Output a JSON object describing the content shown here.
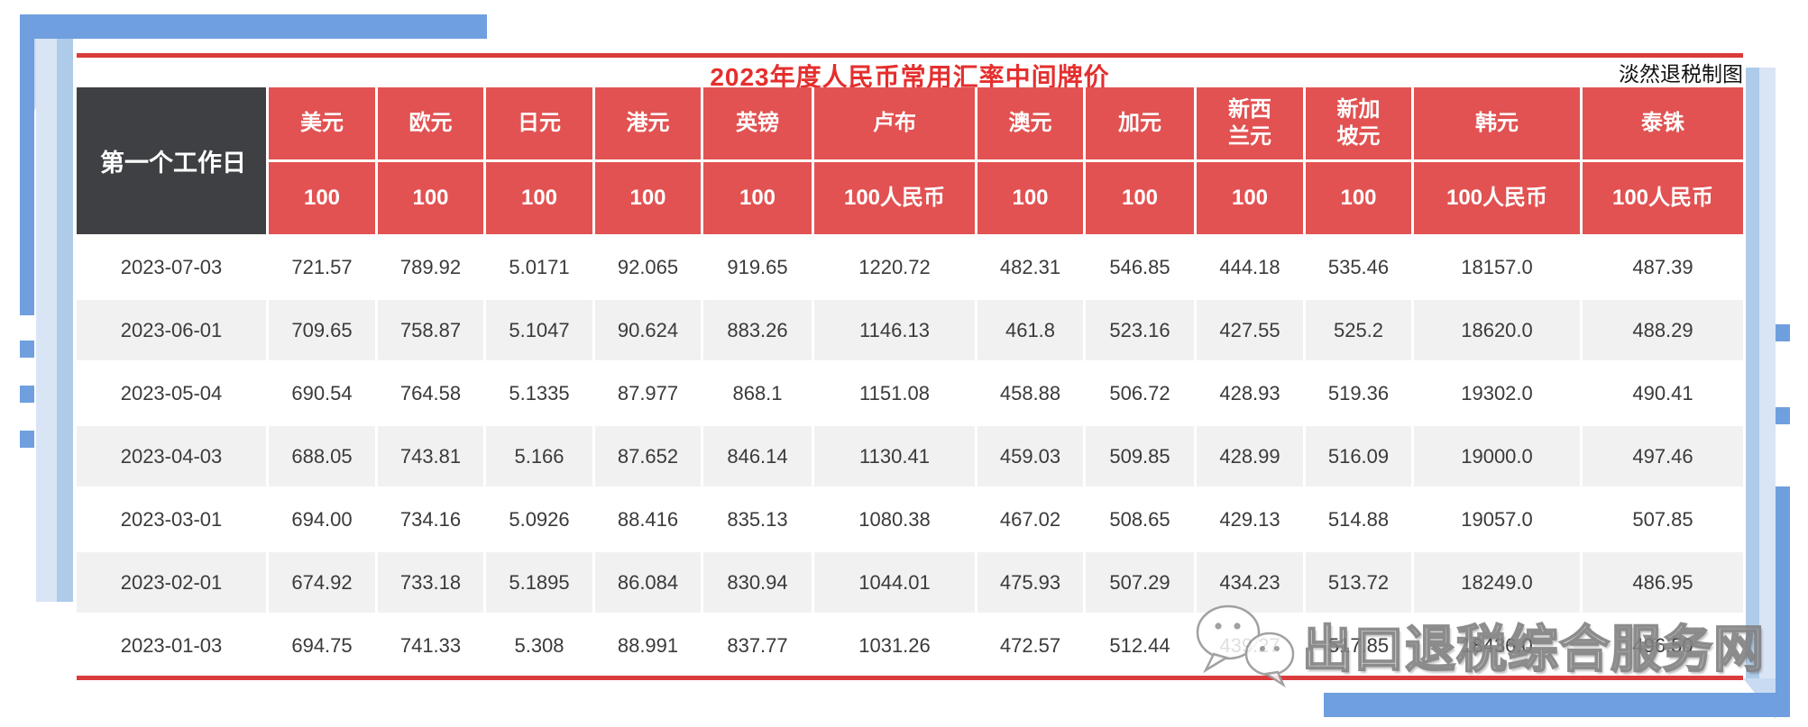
{
  "page": {
    "title": "2023年度人民币常用汇率中间牌价",
    "credit": "淡然退税制图"
  },
  "table": {
    "corner_header": "第一个工作日",
    "columns": [
      {
        "name": "美元",
        "unit": "100"
      },
      {
        "name": "欧元",
        "unit": "100"
      },
      {
        "name": "日元",
        "unit": "100"
      },
      {
        "name": "港元",
        "unit": "100"
      },
      {
        "name": "英镑",
        "unit": "100"
      },
      {
        "name": "卢布",
        "unit": "100人民币"
      },
      {
        "name": "澳元",
        "unit": "100"
      },
      {
        "name": "加元",
        "unit": "100"
      },
      {
        "name": "新西\n兰元",
        "unit": "100"
      },
      {
        "name": "新加\n坡元",
        "unit": "100"
      },
      {
        "name": "韩元",
        "unit": "100人民币"
      },
      {
        "name": "泰铢",
        "unit": "100人民币"
      }
    ],
    "rows": [
      {
        "date": "2023-07-03",
        "values": [
          "721.57",
          "789.92",
          "5.0171",
          "92.065",
          "919.65",
          "1220.72",
          "482.31",
          "546.85",
          "444.18",
          "535.46",
          "18157.0",
          "487.39"
        ]
      },
      {
        "date": "2023-06-01",
        "values": [
          "709.65",
          "758.87",
          "5.1047",
          "90.624",
          "883.26",
          "1146.13",
          "461.8",
          "523.16",
          "427.55",
          "525.2",
          "18620.0",
          "488.29"
        ]
      },
      {
        "date": "2023-05-04",
        "values": [
          "690.54",
          "764.58",
          "5.1335",
          "87.977",
          "868.1",
          "1151.08",
          "458.88",
          "506.72",
          "428.93",
          "519.36",
          "19302.0",
          "490.41"
        ]
      },
      {
        "date": "2023-04-03",
        "values": [
          "688.05",
          "743.81",
          "5.166",
          "87.652",
          "846.14",
          "1130.41",
          "459.03",
          "509.85",
          "428.99",
          "516.09",
          "19000.0",
          "497.46"
        ]
      },
      {
        "date": "2023-03-01",
        "values": [
          "694.00",
          "734.16",
          "5.0926",
          "88.416",
          "835.13",
          "1080.38",
          "467.02",
          "508.65",
          "429.13",
          "514.88",
          "19057.0",
          "507.85"
        ]
      },
      {
        "date": "2023-02-01",
        "values": [
          "674.92",
          "733.18",
          "5.1895",
          "86.084",
          "830.94",
          "1044.01",
          "475.93",
          "507.29",
          "434.23",
          "513.72",
          "18249.0",
          "486.95"
        ]
      },
      {
        "date": "2023-01-03",
        "values": [
          "694.75",
          "741.33",
          "5.308",
          "88.991",
          "837.77",
          "1031.26",
          "472.57",
          "512.44",
          "439.27",
          "517.85",
          "18436.0",
          "496.50"
        ]
      }
    ]
  },
  "watermark": {
    "text": "出口退税综合服务网",
    "logo": "wechat-bubbles-icon"
  },
  "colors": {
    "header_red": "#e25252",
    "corner_dark": "#3e4043",
    "rule_red": "#da3b3b",
    "title_red": "#e52e2e",
    "alt_row_gray": "#f1f1f1",
    "deco_blue": "#6f9fde",
    "deco_blue_light": "#d9e5f5",
    "deco_blue_mid": "#aecbe9"
  },
  "chart_data": {
    "type": "table",
    "title": "2023年度人民币常用汇率中间牌价",
    "row_header": "第一个工作日",
    "columns": [
      "美元",
      "欧元",
      "日元",
      "港元",
      "英镑",
      "卢布",
      "澳元",
      "加元",
      "新西兰元",
      "新加坡元",
      "韩元",
      "泰铢"
    ],
    "units": [
      "100",
      "100",
      "100",
      "100",
      "100",
      "100人民币",
      "100",
      "100",
      "100",
      "100",
      "100人民币",
      "100人民币"
    ],
    "rows": [
      {
        "date": "2023-07-03",
        "values": [
          721.57,
          789.92,
          5.0171,
          92.065,
          919.65,
          1220.72,
          482.31,
          546.85,
          444.18,
          535.46,
          18157.0,
          487.39
        ]
      },
      {
        "date": "2023-06-01",
        "values": [
          709.65,
          758.87,
          5.1047,
          90.624,
          883.26,
          1146.13,
          461.8,
          523.16,
          427.55,
          525.2,
          18620.0,
          488.29
        ]
      },
      {
        "date": "2023-05-04",
        "values": [
          690.54,
          764.58,
          5.1335,
          87.977,
          868.1,
          1151.08,
          458.88,
          506.72,
          428.93,
          519.36,
          19302.0,
          490.41
        ]
      },
      {
        "date": "2023-04-03",
        "values": [
          688.05,
          743.81,
          5.166,
          87.652,
          846.14,
          1130.41,
          459.03,
          509.85,
          428.99,
          516.09,
          19000.0,
          497.46
        ]
      },
      {
        "date": "2023-03-01",
        "values": [
          694.0,
          734.16,
          5.0926,
          88.416,
          835.13,
          1080.38,
          467.02,
          508.65,
          429.13,
          514.88,
          19057.0,
          507.85
        ]
      },
      {
        "date": "2023-02-01",
        "values": [
          674.92,
          733.18,
          5.1895,
          86.084,
          830.94,
          1044.01,
          475.93,
          507.29,
          434.23,
          513.72,
          18249.0,
          486.95
        ]
      },
      {
        "date": "2023-01-03",
        "values": [
          694.75,
          741.33,
          5.308,
          88.991,
          837.77,
          1031.26,
          472.57,
          512.44,
          439.27,
          517.85,
          18436.0,
          496.5
        ]
      }
    ]
  }
}
